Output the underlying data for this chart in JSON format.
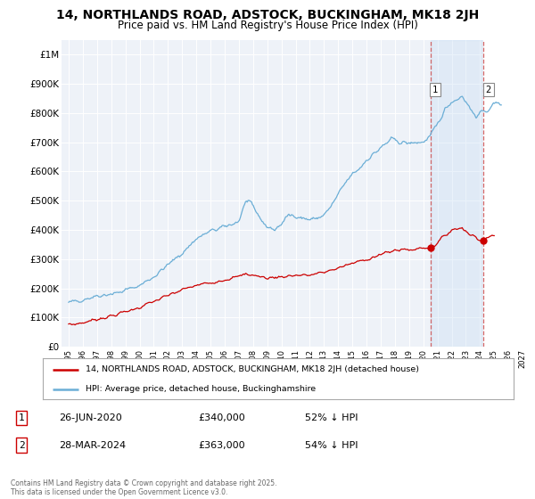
{
  "title": "14, NORTHLANDS ROAD, ADSTOCK, BUCKINGHAM, MK18 2JH",
  "subtitle": "Price paid vs. HM Land Registry's House Price Index (HPI)",
  "title_fontsize": 10,
  "subtitle_fontsize": 8.5,
  "background_color": "#ffffff",
  "plot_bg_color": "#eef2f8",
  "grid_color": "#ffffff",
  "hpi_color": "#6baed6",
  "price_color": "#cc0000",
  "xlim": [
    1994.5,
    2027.5
  ],
  "ylim": [
    0,
    1050000
  ],
  "yticks": [
    0,
    100000,
    200000,
    300000,
    400000,
    500000,
    600000,
    700000,
    800000,
    900000,
    1000000
  ],
  "ytick_labels": [
    "£0",
    "£100K",
    "£200K",
    "£300K",
    "£400K",
    "£500K",
    "£600K",
    "£700K",
    "£800K",
    "£900K",
    "£1M"
  ],
  "xticks": [
    1995,
    1996,
    1997,
    1998,
    1999,
    2000,
    2001,
    2002,
    2003,
    2004,
    2005,
    2006,
    2007,
    2008,
    2009,
    2010,
    2011,
    2012,
    2013,
    2014,
    2015,
    2016,
    2017,
    2018,
    2019,
    2020,
    2021,
    2022,
    2023,
    2024,
    2025,
    2026,
    2027
  ],
  "annotation1": {
    "x": 2020.5,
    "label": "1",
    "date": "26-JUN-2020",
    "price": "£340,000",
    "pct": "52% ↓ HPI"
  },
  "annotation2": {
    "x": 2024.25,
    "label": "2",
    "date": "28-MAR-2024",
    "price": "£363,000",
    "pct": "54% ↓ HPI"
  },
  "legend_line1": "14, NORTHLANDS ROAD, ADSTOCK, BUCKINGHAM, MK18 2JH (detached house)",
  "legend_line2": "HPI: Average price, detached house, Buckinghamshire",
  "footnote": "Contains HM Land Registry data © Crown copyright and database right 2025.\nThis data is licensed under the Open Government Licence v3.0.",
  "vline1_x": 2020.5,
  "vline2_x": 2024.25,
  "shade1_color": "#dce8f8",
  "price_dot1_x": 2020.5,
  "price_dot1_y": 340000,
  "price_dot2_x": 2024.25,
  "price_dot2_y": 363000
}
